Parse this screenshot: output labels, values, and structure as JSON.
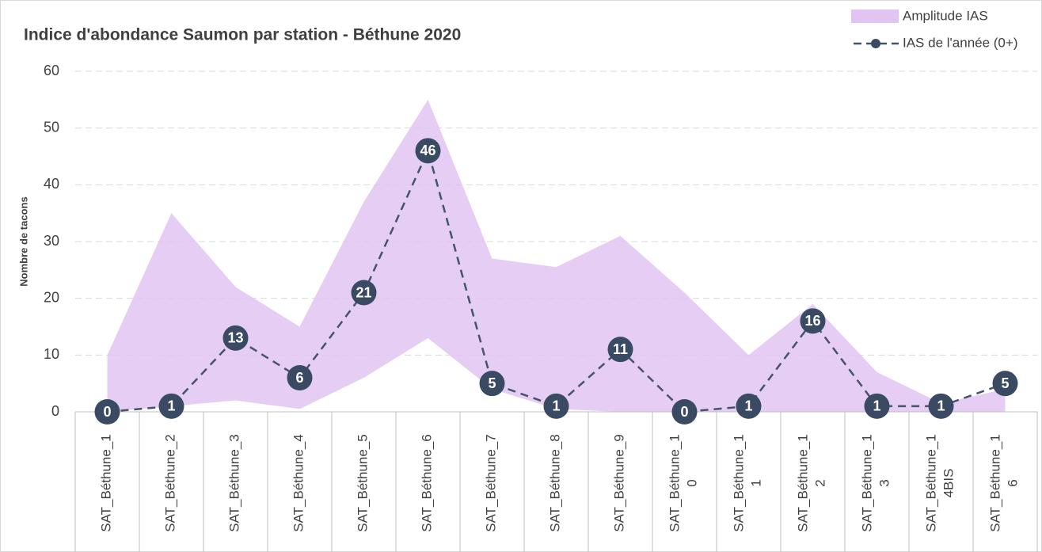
{
  "chart_data": {
    "type": "line",
    "title": "Indice d'abondance Saumon par station - Béthune 2020",
    "y_label": "Nombre de tacons",
    "categories": [
      "SAT_Béthune_1",
      "SAT_Béthune_2",
      "SAT_Béthune_3",
      "SAT_Béthune_4",
      "SAT_Béthune_5",
      "SAT_Béthune_6",
      "SAT_Béthune_7",
      "SAT_Béthune_8",
      "SAT_Béthune_9",
      "SAT_Béthune_10",
      "SAT_Béthune_11",
      "SAT_Béthune_12",
      "SAT_Béthune_13",
      "SAT_Béthune_14BIS",
      "SAT_Béthune_16"
    ],
    "band": {
      "name": "Amplitude IAS",
      "color": "#e2c4f2",
      "upper": [
        10,
        35,
        22,
        15,
        37,
        55,
        27,
        25.5,
        31,
        21,
        10,
        19,
        7,
        1.5,
        4
      ],
      "lower": [
        0,
        1,
        2,
        0.5,
        6,
        13,
        4,
        0.5,
        0,
        0,
        0,
        0,
        0,
        0,
        0
      ]
    },
    "series": [
      {
        "name": "IAS de l'année (0+)",
        "color": "#44546a",
        "values": [
          0,
          1,
          13,
          6,
          21,
          46,
          5,
          1,
          11,
          0,
          1,
          16,
          1,
          1,
          5
        ]
      }
    ],
    "ylim": [
      0,
      60
    ],
    "yticks": [
      0,
      10,
      20,
      30,
      40,
      50,
      60
    ],
    "grid": true,
    "legend": "top-right"
  }
}
